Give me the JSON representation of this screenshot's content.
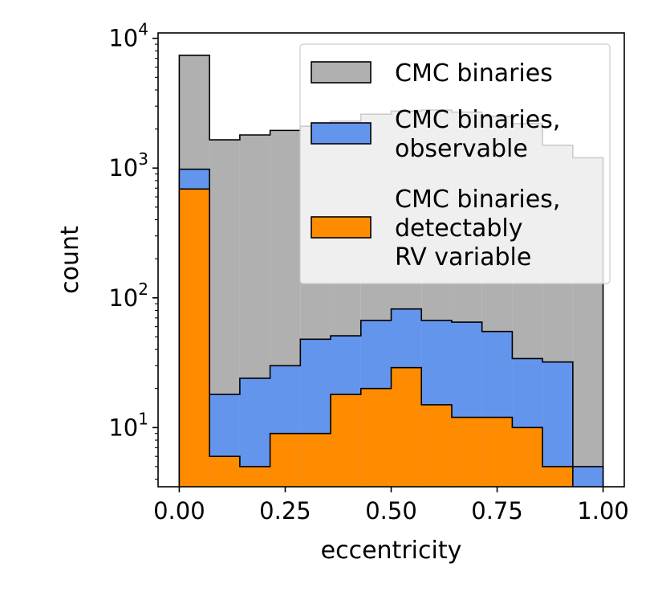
{
  "chart_data": {
    "type": "histogram",
    "xlabel": "eccentricity",
    "ylabel": "count",
    "yscale": "log",
    "xlim": [
      -0.05,
      1.05
    ],
    "ylim": [
      3.5,
      11000
    ],
    "x_ticks": [
      "0.00",
      "0.25",
      "0.50",
      "0.75",
      "1.00"
    ],
    "x_tick_values": [
      0,
      0.25,
      0.5,
      0.75,
      1.0
    ],
    "y_ticks": [
      {
        "base": "10",
        "exp": "1",
        "value": 10
      },
      {
        "base": "10",
        "exp": "2",
        "value": 100
      },
      {
        "base": "10",
        "exp": "3",
        "value": 1000
      },
      {
        "base": "10",
        "exp": "4",
        "value": 10000
      }
    ],
    "bin_edges": [
      0.0,
      0.0714,
      0.1429,
      0.2143,
      0.2857,
      0.3571,
      0.4286,
      0.5,
      0.5714,
      0.6429,
      0.7143,
      0.7857,
      0.8571,
      0.9286,
      1.0
    ],
    "series": [
      {
        "name": "CMC binaries",
        "color": "#b0b0b0",
        "values": [
          7400,
          1650,
          1800,
          1950,
          2100,
          2300,
          2600,
          2750,
          2800,
          2700,
          2500,
          2200,
          1500,
          1200
        ]
      },
      {
        "name": "CMC binaries, observable",
        "color": "#6495ed",
        "values": [
          980,
          18,
          24,
          30,
          48,
          51,
          67,
          82,
          67,
          65,
          55,
          34,
          32,
          5
        ]
      },
      {
        "name": "CMC binaries, detectably RV variable",
        "color": "#ff8c00",
        "values": [
          690,
          6,
          5,
          9,
          9,
          18,
          20,
          29,
          15,
          12,
          12,
          10,
          5,
          null
        ]
      }
    ],
    "legend": {
      "position": "upper-right",
      "entries": [
        {
          "lines": [
            "CMC binaries"
          ],
          "color": "#b0b0b0"
        },
        {
          "lines": [
            "CMC binaries,",
            "observable"
          ],
          "color": "#6495ed"
        },
        {
          "lines": [
            "CMC binaries,",
            "detectably",
            "RV variable"
          ],
          "color": "#ff8c00"
        }
      ]
    }
  }
}
